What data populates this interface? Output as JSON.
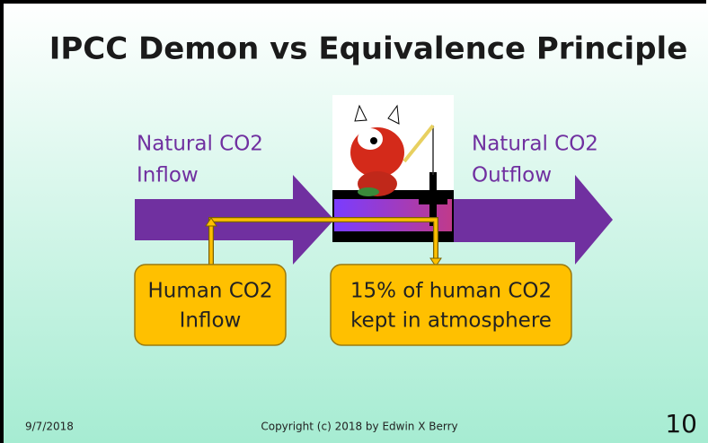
{
  "slide": {
    "title": "IPCC Demon vs Equivalence Principle",
    "inflow_label": [
      "Natural CO2",
      "Inflow"
    ],
    "outflow_label": [
      "Natural CO2",
      "Outflow"
    ],
    "human_box": [
      "Human CO2",
      "Inflow"
    ],
    "kept_box": [
      "15% of human CO2",
      "kept in atmosphere"
    ],
    "footer": {
      "date": "9/7/2018",
      "copyright": "Copyright (c) 2018 by Edwin X Berry",
      "page": "10"
    }
  }
}
